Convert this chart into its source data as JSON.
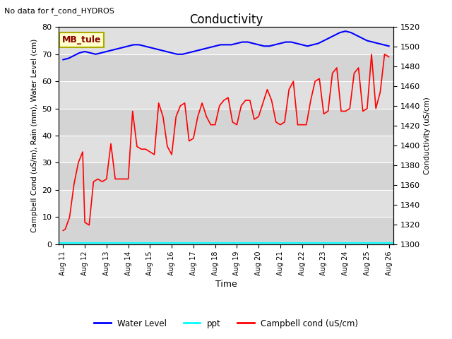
{
  "title": "Conductivity",
  "top_left_text": "No data for f_cond_HYDROS",
  "xlabel": "Time",
  "ylabel_left": "Campbell Cond (uS/m), Rain (mm), Water Level (cm)",
  "ylabel_right": "Conductivity (uS/cm)",
  "ylim_left": [
    0,
    80
  ],
  "ylim_right": [
    1300,
    1520
  ],
  "plot_bg_color": "#e8e8e8",
  "box_label": "MB_tule",
  "box_color": "#ffffcc",
  "box_border_color": "#aaaa00",
  "water_level_x": [
    0,
    0.25,
    0.5,
    0.75,
    1.0,
    1.25,
    1.5,
    1.75,
    2.0,
    2.25,
    2.5,
    2.75,
    3.0,
    3.25,
    3.5,
    3.75,
    4.0,
    4.25,
    4.5,
    4.75,
    5.0,
    5.25,
    5.5,
    5.75,
    6.0,
    6.25,
    6.5,
    6.75,
    7.0,
    7.25,
    7.5,
    7.75,
    8.0,
    8.25,
    8.5,
    8.75,
    9.0,
    9.25,
    9.5,
    9.75,
    10.0,
    10.25,
    10.5,
    10.75,
    11.0,
    11.25,
    11.5,
    11.75,
    12.0,
    12.25,
    12.5,
    12.75,
    13.0,
    13.25,
    13.5,
    13.75,
    14.0,
    14.25,
    14.5,
    14.75,
    15.0
  ],
  "water_level_y": [
    68,
    68.5,
    69.5,
    70.5,
    71,
    70.5,
    70,
    70.5,
    71,
    71.5,
    72,
    72.5,
    73,
    73.5,
    73.5,
    73,
    72.5,
    72,
    71.5,
    71,
    70.5,
    70,
    70,
    70.5,
    71,
    71.5,
    72,
    72.5,
    73,
    73.5,
    73.5,
    73.5,
    74,
    74.5,
    74.5,
    74,
    73.5,
    73,
    73,
    73.5,
    74,
    74.5,
    74.5,
    74,
    73.5,
    73,
    73.5,
    74,
    75,
    76,
    77,
    78,
    78.5,
    78,
    77,
    76,
    75,
    74.5,
    74,
    73.5,
    73
  ],
  "campbell_x": [
    0,
    0.1,
    0.3,
    0.5,
    0.7,
    0.9,
    1.0,
    1.2,
    1.4,
    1.6,
    1.8,
    2.0,
    2.2,
    2.4,
    2.6,
    2.8,
    3.0,
    3.2,
    3.4,
    3.6,
    3.8,
    4.0,
    4.2,
    4.4,
    4.6,
    4.8,
    5.0,
    5.2,
    5.4,
    5.6,
    5.8,
    6.0,
    6.2,
    6.4,
    6.6,
    6.8,
    7.0,
    7.2,
    7.4,
    7.6,
    7.8,
    8.0,
    8.2,
    8.4,
    8.6,
    8.8,
    9.0,
    9.2,
    9.4,
    9.6,
    9.8,
    10.0,
    10.2,
    10.4,
    10.6,
    10.8,
    11.0,
    11.2,
    11.4,
    11.6,
    11.8,
    12.0,
    12.2,
    12.4,
    12.6,
    12.8,
    13.0,
    13.2,
    13.4,
    13.6,
    13.8,
    14.0,
    14.2,
    14.4,
    14.6,
    14.8,
    15.0
  ],
  "campbell_y": [
    5,
    5.5,
    10,
    22,
    30,
    34,
    8,
    7,
    23,
    24,
    23,
    24,
    37,
    24,
    24,
    24,
    24,
    49,
    36,
    35,
    35,
    34,
    33,
    52,
    47,
    36,
    33,
    47,
    51,
    52,
    38,
    39,
    47,
    52,
    47,
    44,
    44,
    51,
    53,
    54,
    45,
    44,
    51,
    53,
    53,
    46,
    47,
    52,
    57,
    53,
    45,
    44,
    45,
    57,
    60,
    44,
    44,
    44,
    53,
    60,
    61,
    48,
    49,
    63,
    65,
    49,
    49,
    50,
    63,
    65,
    49,
    50,
    70,
    50,
    56,
    70,
    69
  ],
  "yticks_left": [
    0,
    10,
    20,
    30,
    40,
    50,
    60,
    70,
    80
  ],
  "yticks_right": [
    1300,
    1320,
    1340,
    1360,
    1380,
    1400,
    1420,
    1440,
    1460,
    1480,
    1500,
    1520
  ],
  "x_tick_labels": [
    "Aug 11",
    "Aug 12",
    "Aug 13",
    "Aug 14",
    "Aug 15",
    "Aug 16",
    "Aug 17",
    "Aug 18",
    "Aug 19",
    "Aug 20",
    "Aug 21",
    "Aug 22",
    "Aug 23",
    "Aug 24",
    "Aug 25",
    "Aug 26"
  ],
  "band_colors": [
    "#d4d4d4",
    "#e0e0e0"
  ]
}
